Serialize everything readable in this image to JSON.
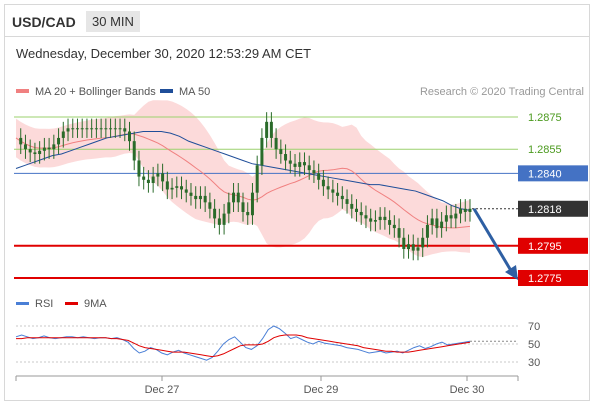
{
  "header": {
    "symbol": "USD/CAD",
    "timeframe": "30 MIN"
  },
  "timestamp": "Wednesday, December 30, 2020 12:53:29 AM CET",
  "legend": {
    "ma20": "MA 20 + Bollinger Bands",
    "ma50": "MA 50",
    "credit": "Research © 2020 Trading Central",
    "rsi": "RSI",
    "ma9": "9MA"
  },
  "colors": {
    "ma20": "#f08080",
    "ma50": "#1f4e99",
    "band": "#fbd3d3",
    "resistance_green": "#9bd16e",
    "pivot_blue": "#4472c4",
    "support_red": "#e00000",
    "current": "#333333",
    "candle": "#2a6b2a",
    "arrow": "#2e5fa3",
    "rsi": "#4a7fd6",
    "rsi_ma": "#e00000"
  },
  "chart_data": [
    {
      "type": "candlestick",
      "title": "USD/CAD 30 MIN",
      "xlabel": "",
      "ylabel": "",
      "ylim": [
        1.2755,
        1.2895
      ],
      "x_tick_labels": [
        "Dec 27",
        "Dec 29",
        "Dec 30"
      ],
      "levels": [
        {
          "value": 1.2875,
          "label": "1.2875",
          "kind": "resistance-2",
          "color": "#9bd16e"
        },
        {
          "value": 1.2855,
          "label": "1.2855",
          "kind": "resistance-1",
          "color": "#9bd16e"
        },
        {
          "value": 1.284,
          "label": "1.2840",
          "kind": "pivot",
          "color": "#4472c4"
        },
        {
          "value": 1.2818,
          "label": "1.2818",
          "kind": "current-price",
          "color": "#333333"
        },
        {
          "value": 1.2795,
          "label": "1.2795",
          "kind": "support-1",
          "color": "#e00000"
        },
        {
          "value": 1.2775,
          "label": "1.2775",
          "kind": "support-2",
          "color": "#e00000"
        }
      ],
      "close_series": [
        1.2862,
        1.2858,
        1.2855,
        1.2853,
        1.2852,
        1.2854,
        1.2856,
        1.2855,
        1.2858,
        1.2862,
        1.2866,
        1.2868,
        1.2868,
        1.2868,
        1.2868,
        1.2868,
        1.2868,
        1.2868,
        1.2868,
        1.2868,
        1.2868,
        1.2868,
        1.2868,
        1.2866,
        1.286,
        1.2848,
        1.2838,
        1.2836,
        1.2834,
        1.2838,
        1.284,
        1.2835,
        1.283,
        1.2831,
        1.2832,
        1.283,
        1.2828,
        1.2826,
        1.2824,
        1.2826,
        1.2822,
        1.2818,
        1.2812,
        1.2808,
        1.2815,
        1.2822,
        1.2828,
        1.2822,
        1.2816,
        1.2814,
        1.2828,
        1.2845,
        1.2862,
        1.2872,
        1.2862,
        1.2855,
        1.2852,
        1.2848,
        1.2846,
        1.2844,
        1.2847,
        1.2845,
        1.2842,
        1.284,
        1.2836,
        1.2832,
        1.283,
        1.2828,
        1.2826,
        1.2824,
        1.2821,
        1.2818,
        1.2816,
        1.2814,
        1.2812,
        1.281,
        1.2811,
        1.2813,
        1.2811,
        1.2808,
        1.2806,
        1.28,
        1.2793,
        1.2796,
        1.2792,
        1.2794,
        1.28,
        1.2808,
        1.2812,
        1.2806,
        1.281,
        1.2814,
        1.2812,
        1.2815,
        1.2818,
        1.2816,
        1.2818
      ],
      "ma50_series": [
        1.2843,
        1.2845,
        1.2847,
        1.2849,
        1.2851,
        1.2852,
        1.2854,
        1.2856,
        1.2858,
        1.286,
        1.2862,
        1.2863,
        1.2864,
        1.2865,
        1.2866,
        1.2866,
        1.2866,
        1.2865,
        1.2863,
        1.286,
        1.2858,
        1.2856,
        1.2854,
        1.2852,
        1.285,
        1.2848,
        1.2846,
        1.2845,
        1.2844,
        1.2843,
        1.2842,
        1.2841,
        1.284,
        1.2839,
        1.2838,
        1.2837,
        1.2836,
        1.2835,
        1.2834,
        1.2833,
        1.2833,
        1.2832,
        1.2831,
        1.283,
        1.2829,
        1.2827,
        1.2825,
        1.2823,
        1.282,
        1.2818,
        1.2817
      ],
      "current_price": 1.2818,
      "projection": {
        "from": 1.2818,
        "to": 1.2775
      }
    },
    {
      "type": "line",
      "title": "RSI",
      "ylim": [
        20,
        80
      ],
      "y_ticks": [
        70,
        50,
        30
      ],
      "series": [
        {
          "name": "RSI",
          "values": [
            58,
            60,
            58,
            56,
            57,
            59,
            57,
            56,
            57,
            58,
            58,
            57,
            58,
            57,
            56,
            57,
            57,
            56,
            57,
            55,
            52,
            45,
            40,
            42,
            46,
            44,
            40,
            38,
            41,
            43,
            40,
            38,
            36,
            34,
            32,
            35,
            42,
            50,
            55,
            58,
            52,
            46,
            44,
            48,
            56,
            66,
            70,
            67,
            62,
            56,
            58,
            55,
            52,
            50,
            53,
            51,
            50,
            49,
            48,
            46,
            45,
            44,
            42,
            40,
            41,
            42,
            40,
            41,
            42,
            40,
            43,
            46,
            48,
            45,
            47,
            50,
            52,
            49,
            50,
            51,
            52,
            53
          ]
        },
        {
          "name": "9MA",
          "values": [
            56,
            56,
            57,
            57,
            57,
            57,
            57,
            57,
            57,
            57,
            57,
            57,
            57,
            57,
            57,
            57,
            57,
            56,
            56,
            55,
            54,
            51,
            48,
            46,
            45,
            44,
            43,
            42,
            41,
            41,
            41,
            40,
            39,
            38,
            37,
            36,
            37,
            39,
            42,
            45,
            48,
            49,
            49,
            49,
            50,
            53,
            57,
            59,
            60,
            60,
            60,
            59,
            57,
            56,
            55,
            54,
            53,
            52,
            51,
            50,
            49,
            48,
            46,
            45,
            44,
            43,
            42,
            42,
            41,
            41,
            41,
            42,
            43,
            44,
            45,
            46,
            47,
            48,
            49,
            50,
            51,
            52
          ]
        }
      ]
    }
  ]
}
